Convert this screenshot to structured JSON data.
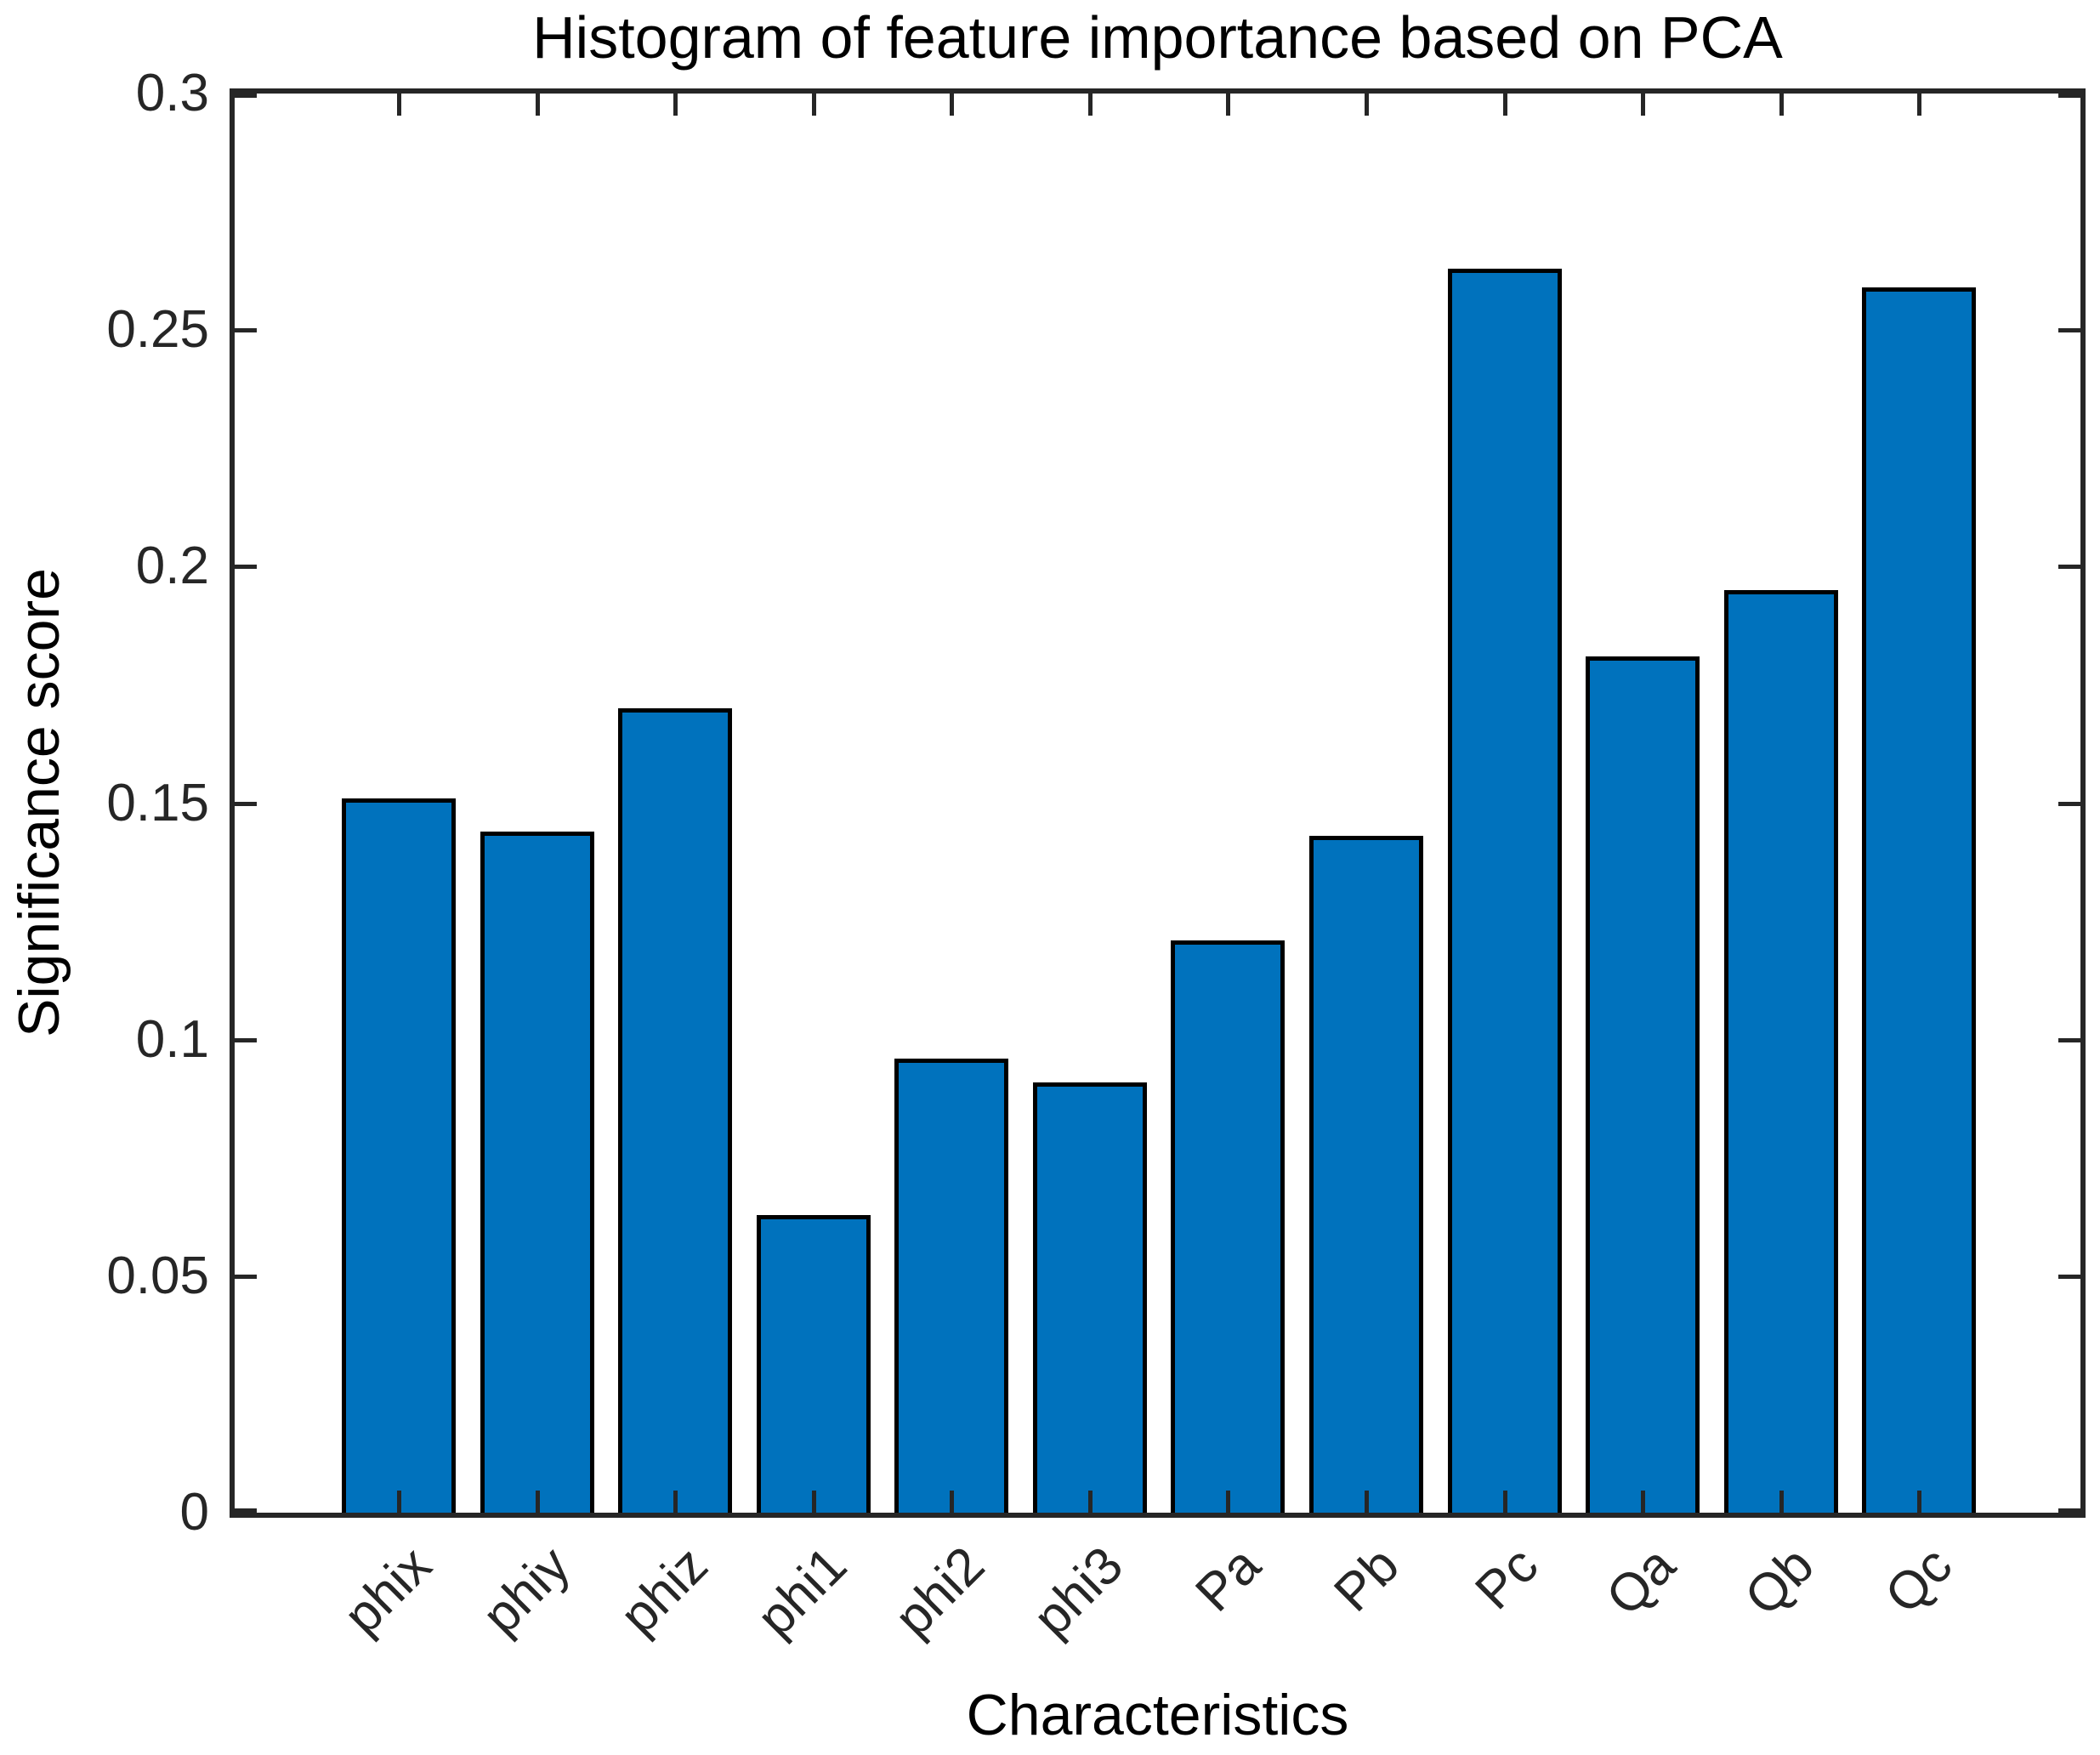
{
  "chart_data": {
    "type": "bar",
    "title": "Histogram of feature importance based on PCA",
    "xlabel": "Characteristics",
    "ylabel": "Significance score",
    "categories": [
      "phix",
      "phiy",
      "phiz",
      "phi1",
      "phi2",
      "phi3",
      "Pa",
      "Pb",
      "Pc",
      "Qa",
      "Qb",
      "Qc"
    ],
    "values": [
      0.151,
      0.144,
      0.17,
      0.063,
      0.096,
      0.091,
      0.121,
      0.143,
      0.263,
      0.181,
      0.195,
      0.259
    ],
    "ylim": [
      0,
      0.3
    ],
    "yticks": [
      0,
      0.05,
      0.1,
      0.15,
      0.2,
      0.25,
      0.3
    ],
    "ytick_labels": [
      "0",
      "0.05",
      "0.1",
      "0.15",
      "0.2",
      "0.25",
      "0.3"
    ],
    "xtick_rotation_deg": 45,
    "grid": false,
    "legend": null,
    "bar_color": "#0072BD",
    "bar_edge_color": "#000000",
    "axis_color": "#262626",
    "background_color": "#FFFFFF"
  }
}
